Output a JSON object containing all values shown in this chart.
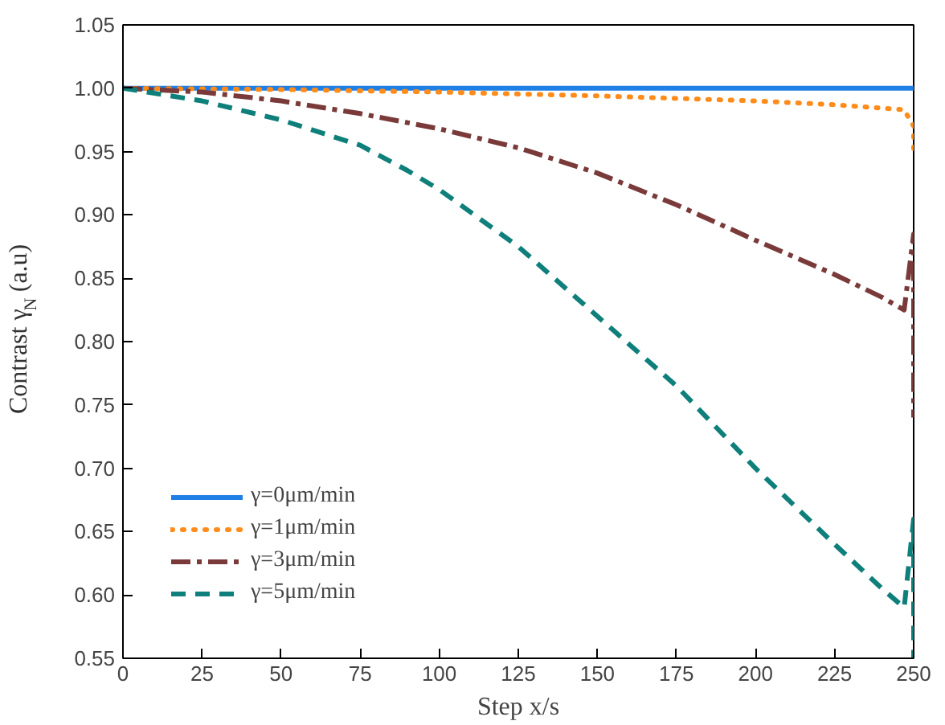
{
  "chart_data": {
    "type": "line",
    "xlabel": "Step x/s",
    "ylabel": "Contrast γ$_{N}$ (a.u)",
    "xlim": [
      0,
      250
    ],
    "ylim": [
      0.55,
      1.05
    ],
    "xticks": [
      0,
      25,
      50,
      75,
      100,
      125,
      150,
      175,
      200,
      225,
      250
    ],
    "yticks": [
      {
        "value": 0.55,
        "label": "0.55"
      },
      {
        "value": 0.6,
        "label": "0.60"
      },
      {
        "value": 0.65,
        "label": "0.65"
      },
      {
        "value": 0.7,
        "label": "0.70"
      },
      {
        "value": 0.75,
        "label": "0.75"
      },
      {
        "value": 0.8,
        "label": "0.80"
      },
      {
        "value": 0.85,
        "label": "0.85"
      },
      {
        "value": 0.9,
        "label": "0.90"
      },
      {
        "value": 0.95,
        "label": "0.95"
      },
      {
        "value": 1.0,
        "label": "1.00"
      },
      {
        "value": 1.05,
        "label": "1.05"
      }
    ],
    "grid": false,
    "legend": "bottom left",
    "series": [
      {
        "name": "γ=0μm/min",
        "color": "#1e7fe6",
        "line_style": "solid",
        "x": [
          0,
          250
        ],
        "values": [
          1.0,
          1.0
        ]
      },
      {
        "name": "γ=1μm/min",
        "color": "#ff8c1a",
        "line_style": "dotted",
        "x": [
          0,
          50,
          100,
          150,
          200,
          225,
          247,
          250,
          250
        ],
        "values": [
          1.0,
          0.999,
          0.997,
          0.994,
          0.99,
          0.987,
          0.983,
          0.97,
          0.945
        ]
      },
      {
        "name": "γ=3μm/min",
        "color": "#7a3a3a",
        "line_style": "dashdot",
        "x": [
          0,
          25,
          50,
          75,
          100,
          125,
          150,
          175,
          200,
          225,
          240,
          247,
          250,
          250
        ],
        "values": [
          1.0,
          0.997,
          0.99,
          0.98,
          0.968,
          0.953,
          0.933,
          0.908,
          0.88,
          0.853,
          0.835,
          0.825,
          0.885,
          0.74
        ]
      },
      {
        "name": "γ=5μm/min",
        "color": "#0e7f7a",
        "line_style": "dashed",
        "x": [
          0,
          25,
          50,
          75,
          90,
          100,
          125,
          150,
          175,
          200,
          225,
          240,
          247,
          250,
          250
        ],
        "values": [
          1.0,
          0.99,
          0.975,
          0.955,
          0.935,
          0.92,
          0.875,
          0.82,
          0.765,
          0.7,
          0.64,
          0.605,
          0.59,
          0.66,
          0.55
        ]
      }
    ]
  }
}
